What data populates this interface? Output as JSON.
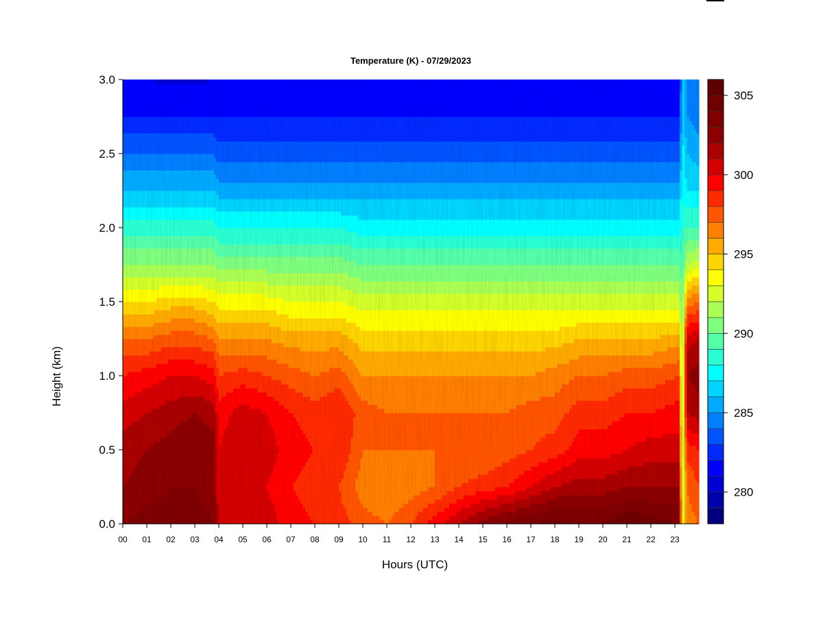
{
  "chart_data": {
    "type": "heatmap",
    "title": "Temperature (K) - 07/29/2023",
    "xlabel": "Hours (UTC)",
    "ylabel": "Height (km)",
    "x_ticks": [
      "00",
      "01",
      "02",
      "03",
      "04",
      "05",
      "06",
      "07",
      "08",
      "09",
      "10",
      "11",
      "12",
      "13",
      "14",
      "15",
      "16",
      "17",
      "18",
      "19",
      "20",
      "21",
      "22",
      "23"
    ],
    "xlim": [
      0,
      24
    ],
    "y_ticks": [
      "0.0",
      "0.5",
      "1.0",
      "1.5",
      "2.0",
      "2.5",
      "3.0"
    ],
    "ylim": [
      0,
      3
    ],
    "colorbar": {
      "ticks": [
        "280",
        "285",
        "290",
        "295",
        "300",
        "305"
      ],
      "range": [
        278,
        306
      ],
      "levels": 28,
      "colors": [
        "#00007F",
        "#0000AA",
        "#0000D4",
        "#0000FF",
        "#002AFF",
        "#0055FF",
        "#007FFF",
        "#00AAFF",
        "#00D4FF",
        "#00FFFF",
        "#2AFFD4",
        "#55FFAA",
        "#7FFF7F",
        "#AAFF55",
        "#D4FF2A",
        "#FFFF00",
        "#FFD400",
        "#FFAA00",
        "#FF7F00",
        "#FF5500",
        "#FF2A00",
        "#FF0000",
        "#D40000",
        "#AA0000",
        "#8B0000",
        "#7F0000",
        "#700000",
        "#600000"
      ]
    },
    "profile_heights_km": [
      0.0,
      0.25,
      0.5,
      0.75,
      1.0,
      1.25,
      1.5,
      1.75,
      2.0,
      2.25,
      2.5,
      2.75,
      3.0
    ],
    "profiles": [
      {
        "hour": 0.0,
        "temps": [
          303.0,
          302.0,
          301.5,
          300.5,
          299.0,
          297.0,
          294.0,
          291.0,
          288.5,
          286.0,
          284.0,
          282.0,
          281.0
        ]
      },
      {
        "hour": 1.0,
        "temps": [
          303.5,
          302.5,
          302.0,
          301.0,
          299.5,
          297.0,
          294.0,
          291.0,
          288.5,
          286.0,
          284.0,
          282.0,
          281.0
        ]
      },
      {
        "hour": 2.0,
        "temps": [
          303.5,
          303.0,
          302.5,
          301.5,
          300.0,
          297.5,
          294.5,
          291.0,
          288.5,
          286.0,
          284.0,
          282.0,
          280.8
        ]
      },
      {
        "hour": 3.0,
        "temps": [
          303.5,
          303.0,
          303.0,
          302.0,
          300.0,
          297.5,
          294.5,
          291.0,
          288.5,
          286.0,
          284.0,
          282.0,
          280.8
        ]
      },
      {
        "hour": 3.8,
        "temps": [
          303.0,
          302.5,
          302.5,
          301.5,
          299.5,
          297.0,
          294.0,
          291.0,
          288.5,
          286.0,
          284.0,
          282.0,
          281.0
        ]
      },
      {
        "hour": 4.0,
        "temps": [
          301.0,
          300.0,
          300.0,
          299.5,
          298.0,
          296.0,
          293.5,
          290.5,
          288.0,
          285.5,
          283.5,
          282.0,
          281.0
        ]
      },
      {
        "hour": 5.0,
        "temps": [
          301.0,
          300.5,
          301.0,
          300.5,
          298.5,
          296.0,
          293.5,
          290.5,
          288.0,
          285.5,
          283.5,
          282.0,
          281.0
        ]
      },
      {
        "hour": 6.0,
        "temps": [
          300.5,
          300.0,
          300.5,
          300.0,
          298.0,
          296.0,
          293.5,
          290.5,
          288.0,
          285.5,
          283.5,
          282.0,
          281.0
        ]
      },
      {
        "hour": 7.0,
        "temps": [
          299.5,
          299.0,
          299.5,
          299.0,
          297.5,
          295.5,
          293.0,
          290.5,
          288.0,
          285.5,
          283.5,
          282.0,
          281.0
        ]
      },
      {
        "hour": 8.0,
        "temps": [
          299.0,
          298.5,
          299.0,
          298.5,
          297.0,
          295.5,
          293.0,
          290.5,
          288.0,
          285.5,
          283.5,
          282.0,
          281.0
        ]
      },
      {
        "hour": 9.0,
        "temps": [
          298.5,
          298.0,
          299.0,
          299.0,
          297.5,
          295.5,
          293.0,
          290.5,
          288.0,
          285.5,
          283.5,
          282.0,
          281.0
        ]
      },
      {
        "hour": 10.0,
        "temps": [
          297.5,
          296.5,
          297.0,
          297.5,
          296.0,
          294.5,
          292.5,
          290.0,
          287.5,
          285.5,
          283.5,
          282.0,
          281.0
        ]
      },
      {
        "hour": 11.0,
        "temps": [
          297.0,
          296.0,
          297.0,
          297.0,
          296.0,
          294.5,
          292.5,
          290.0,
          287.5,
          285.5,
          283.5,
          282.0,
          281.0
        ]
      },
      {
        "hour": 12.0,
        "temps": [
          298.0,
          296.5,
          297.0,
          297.0,
          296.0,
          294.5,
          292.5,
          290.0,
          287.5,
          285.5,
          283.5,
          282.0,
          281.0
        ]
      },
      {
        "hour": 13.0,
        "temps": [
          299.5,
          297.0,
          297.0,
          297.0,
          296.0,
          294.5,
          292.5,
          290.0,
          287.5,
          285.5,
          283.5,
          282.0,
          281.0
        ]
      },
      {
        "hour": 14.0,
        "temps": [
          301.0,
          298.0,
          297.0,
          297.0,
          296.0,
          294.5,
          292.5,
          290.0,
          287.5,
          285.5,
          283.5,
          282.0,
          281.0
        ]
      },
      {
        "hour": 15.0,
        "temps": [
          302.5,
          298.5,
          297.0,
          297.0,
          296.0,
          294.5,
          292.5,
          290.0,
          287.5,
          285.5,
          283.5,
          282.0,
          281.0
        ]
      },
      {
        "hour": 16.0,
        "temps": [
          303.5,
          299.0,
          297.5,
          297.0,
          296.0,
          294.5,
          292.5,
          290.0,
          287.5,
          285.5,
          283.5,
          282.0,
          281.0
        ]
      },
      {
        "hour": 17.0,
        "temps": [
          304.0,
          300.0,
          298.0,
          297.5,
          296.0,
          294.5,
          292.5,
          290.0,
          287.5,
          285.5,
          283.5,
          282.0,
          281.0
        ]
      },
      {
        "hour": 18.0,
        "temps": [
          304.5,
          301.0,
          298.5,
          297.5,
          296.5,
          294.5,
          292.5,
          290.0,
          287.5,
          285.5,
          283.5,
          282.0,
          281.0
        ]
      },
      {
        "hour": 19.0,
        "temps": [
          304.0,
          301.5,
          299.5,
          298.5,
          297.0,
          295.0,
          292.5,
          290.0,
          287.5,
          285.5,
          283.5,
          282.0,
          281.0
        ]
      },
      {
        "hour": 20.0,
        "temps": [
          304.0,
          301.5,
          299.5,
          298.5,
          297.0,
          295.0,
          292.5,
          290.0,
          287.5,
          285.5,
          283.5,
          282.0,
          281.0
        ]
      },
      {
        "hour": 21.0,
        "temps": [
          305.0,
          302.0,
          300.0,
          299.0,
          297.5,
          295.0,
          292.5,
          290.0,
          287.5,
          285.5,
          283.5,
          282.0,
          281.0
        ]
      },
      {
        "hour": 22.0,
        "temps": [
          304.5,
          302.0,
          300.5,
          299.0,
          297.5,
          295.0,
          292.5,
          290.0,
          287.5,
          285.5,
          283.5,
          282.0,
          281.0
        ]
      },
      {
        "hour": 23.2,
        "temps": [
          304.0,
          302.0,
          300.5,
          299.5,
          298.0,
          295.5,
          292.5,
          290.0,
          287.5,
          285.5,
          283.5,
          282.0,
          281.0
        ]
      },
      {
        "hour": 23.3,
        "temps": [
          292.0,
          291.0,
          290.5,
          290.0,
          290.0,
          290.0,
          289.5,
          289.0,
          288.5,
          288.0,
          287.5,
          287.0,
          286.5
        ]
      },
      {
        "hour": 23.5,
        "temps": [
          296.5,
          297.0,
          298.5,
          301.0,
          302.0,
          300.5,
          296.5,
          292.0,
          289.0,
          287.0,
          286.0,
          285.0,
          285.0
        ]
      },
      {
        "hour": 24.0,
        "temps": [
          297.0,
          298.0,
          299.0,
          301.5,
          302.5,
          301.0,
          297.0,
          292.5,
          289.0,
          287.0,
          285.5,
          284.5,
          284.0
        ]
      }
    ]
  }
}
